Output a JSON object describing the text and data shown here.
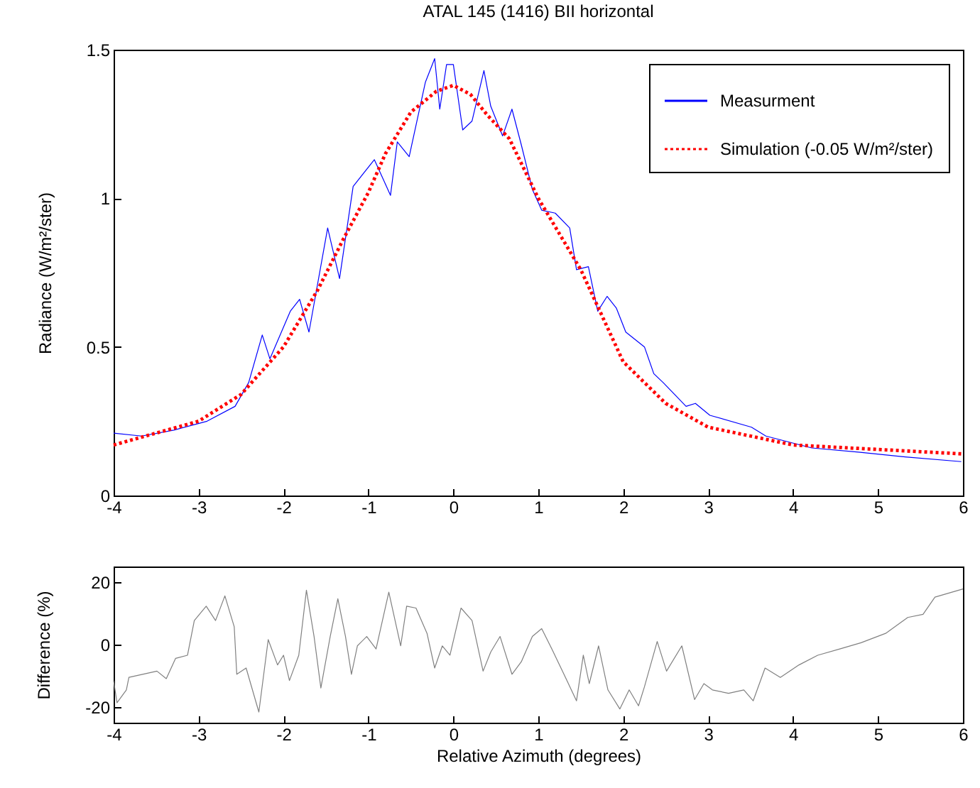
{
  "chart_data": [
    {
      "type": "line",
      "title": "ATAL 145 (1416) BII horizontal",
      "ylabel": "Radiance (W/m²/ster)",
      "xlim": [
        -4,
        6
      ],
      "xticks": [
        -4,
        -3,
        -2,
        -1,
        0,
        1,
        2,
        3,
        4,
        5,
        6
      ],
      "ylim": [
        0,
        1.5
      ],
      "yticks": [
        0,
        0.5,
        1,
        1.5
      ],
      "legend": "top right",
      "series": [
        {
          "name": "Measurment",
          "color": "#0000ff",
          "line_style": "solid",
          "x": [
            -4,
            -3.67,
            -3.29,
            -2.9,
            -2.57,
            -2.41,
            -2.25,
            -2.16,
            -1.92,
            -1.81,
            -1.7,
            -1.48,
            -1.34,
            -1.18,
            -0.93,
            -0.74,
            -0.66,
            -0.52,
            -0.33,
            -0.22,
            -0.16,
            -0.08,
            0,
            0.11,
            0.22,
            0.36,
            0.44,
            0.58,
            0.69,
            0.8,
            0.93,
            1.04,
            1.2,
            1.37,
            1.45,
            1.59,
            1.7,
            1.81,
            1.92,
            2.03,
            2.25,
            2.36,
            2.47,
            2.74,
            2.85,
            3.02,
            3.51,
            3.68,
            4.22,
            4.77,
            5.32,
            5.98
          ],
          "values": [
            0.21,
            0.2,
            0.22,
            0.25,
            0.3,
            0.38,
            0.54,
            0.46,
            0.62,
            0.66,
            0.55,
            0.9,
            0.73,
            1.04,
            1.13,
            1.01,
            1.19,
            1.14,
            1.39,
            1.47,
            1.3,
            1.45,
            1.45,
            1.23,
            1.26,
            1.43,
            1.31,
            1.21,
            1.3,
            1.18,
            1.03,
            0.96,
            0.95,
            0.9,
            0.76,
            0.77,
            0.62,
            0.67,
            0.63,
            0.55,
            0.5,
            0.41,
            0.38,
            0.3,
            0.31,
            0.27,
            0.23,
            0.2,
            0.16,
            0.146,
            0.13,
            0.114
          ]
        },
        {
          "name": "Simulation (-0.05 W/m²/ster)",
          "color": "#ff0000",
          "line_style": "dotted",
          "x": [
            -4,
            -3.5,
            -3,
            -2.5,
            -2,
            -1.6,
            -1.3,
            -1,
            -0.8,
            -0.5,
            -0.2,
            0,
            0.2,
            0.4,
            0.66,
            1,
            1.5,
            2,
            2.5,
            3,
            3.5,
            4,
            5,
            6
          ],
          "values": [
            0.17,
            0.21,
            0.25,
            0.34,
            0.5,
            0.69,
            0.86,
            1.02,
            1.15,
            1.29,
            1.36,
            1.38,
            1.35,
            1.28,
            1.2,
            1.0,
            0.76,
            0.45,
            0.31,
            0.23,
            0.2,
            0.17,
            0.155,
            0.14
          ]
        }
      ]
    },
    {
      "type": "line",
      "xlabel": "Relative Azimuth (degrees)",
      "ylabel": "Difference (%)",
      "xlim": [
        -4,
        6
      ],
      "xticks": [
        -4,
        -3,
        -2,
        -1,
        0,
        1,
        2,
        3,
        4,
        5,
        6
      ],
      "ylim": [
        -25,
        25
      ],
      "yticks": [
        -20,
        0,
        20
      ],
      "series": [
        {
          "color": "#808080",
          "x": [
            -4,
            -3.96,
            -3.85,
            -3.82,
            -3.49,
            -3.38,
            -3.27,
            -3.13,
            -3.05,
            -2.91,
            -2.8,
            -2.69,
            -2.58,
            -2.55,
            -2.44,
            -2.29,
            -2.18,
            -2.07,
            -2,
            -1.93,
            -1.82,
            -1.73,
            -1.64,
            -1.56,
            -1.45,
            -1.36,
            -1.27,
            -1.2,
            -1.13,
            -1.02,
            -0.91,
            -0.76,
            -0.62,
            -0.55,
            -0.44,
            -0.31,
            -0.22,
            -0.13,
            -0.04,
            0.09,
            0.22,
            0.35,
            0.44,
            0.55,
            0.69,
            0.8,
            0.93,
            1.04,
            1.16,
            1.32,
            1.45,
            1.53,
            1.6,
            1.71,
            1.82,
            1.96,
            2.07,
            2.18,
            2.25,
            2.4,
            2.51,
            2.69,
            2.84,
            2.95,
            3.05,
            3.24,
            3.42,
            3.53,
            3.67,
            3.85,
            4.07,
            4.29,
            4.55,
            4.8,
            5.09,
            5.35,
            5.53,
            5.67,
            6
          ],
          "values": [
            -11.5,
            -18.6,
            -14.5,
            -10.5,
            -8.5,
            -10.9,
            -4.4,
            -3.4,
            7.7,
            12.3,
            7.7,
            15.6,
            5.7,
            -9.5,
            -7.5,
            -21.6,
            1.6,
            -6.5,
            -3.4,
            -11.5,
            -3.4,
            17.4,
            2.6,
            -13.9,
            2.6,
            14.7,
            2.6,
            -9.5,
            -0.4,
            2.6,
            -1.4,
            16.8,
            -0.4,
            12.3,
            11.7,
            3.6,
            -7.5,
            -0.4,
            -3.4,
            11.7,
            7.7,
            -8.5,
            -2.4,
            2.6,
            -9.5,
            -5.5,
            2.6,
            5.1,
            -1.4,
            -10.5,
            -18,
            -3.4,
            -12.5,
            -0.4,
            -14.5,
            -20.6,
            -14.5,
            -19.6,
            -13.5,
            1,
            -8.5,
            -0.4,
            -17.6,
            -12.5,
            -14.5,
            -15.6,
            -14.5,
            -18,
            -7.5,
            -10.5,
            -6.5,
            -3.4,
            -1.4,
            0.6,
            3.6,
            8.7,
            9.7,
            15.2,
            17.8
          ]
        }
      ]
    }
  ]
}
